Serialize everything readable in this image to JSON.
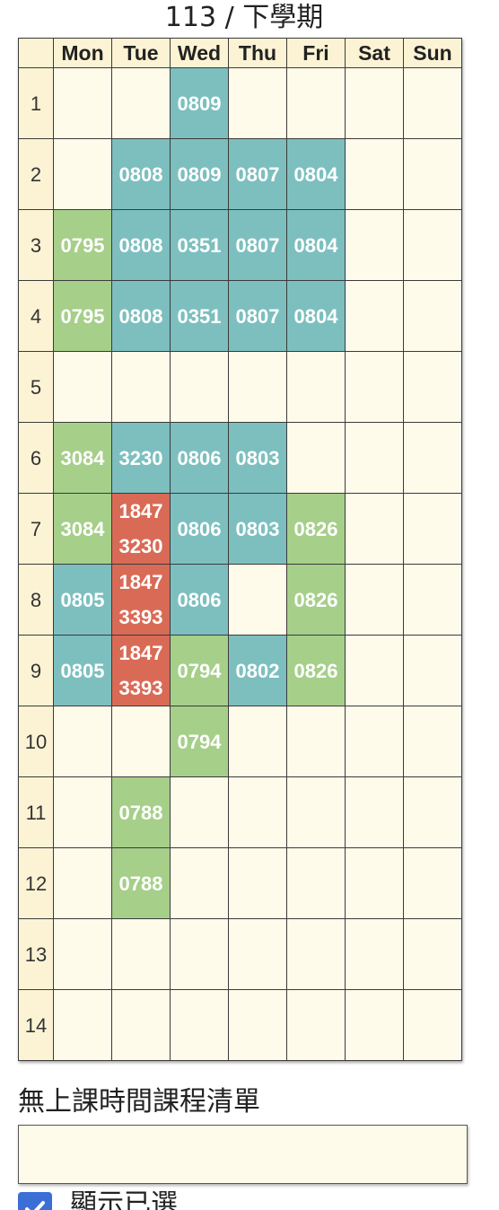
{
  "header": {
    "title": "113 / 下學期"
  },
  "timetable": {
    "days": [
      "Mon",
      "Tue",
      "Wed",
      "Thu",
      "Fri",
      "Sat",
      "Sun"
    ],
    "periods": [
      "1",
      "2",
      "3",
      "4",
      "5",
      "6",
      "7",
      "8",
      "9",
      "10",
      "11",
      "12",
      "13",
      "14"
    ],
    "rows": [
      [
        {
          "codes": [],
          "color": "empty"
        },
        {
          "codes": [],
          "color": "empty"
        },
        {
          "codes": [
            "0809"
          ],
          "color": "blue"
        },
        {
          "codes": [],
          "color": "empty"
        },
        {
          "codes": [],
          "color": "empty"
        },
        {
          "codes": [],
          "color": "empty"
        },
        {
          "codes": [],
          "color": "empty"
        }
      ],
      [
        {
          "codes": [],
          "color": "empty"
        },
        {
          "codes": [
            "0808"
          ],
          "color": "blue"
        },
        {
          "codes": [
            "0809"
          ],
          "color": "blue"
        },
        {
          "codes": [
            "0807"
          ],
          "color": "blue"
        },
        {
          "codes": [
            "0804"
          ],
          "color": "blue"
        },
        {
          "codes": [],
          "color": "empty"
        },
        {
          "codes": [],
          "color": "empty"
        }
      ],
      [
        {
          "codes": [
            "0795"
          ],
          "color": "green"
        },
        {
          "codes": [
            "0808"
          ],
          "color": "blue"
        },
        {
          "codes": [
            "0351"
          ],
          "color": "blue"
        },
        {
          "codes": [
            "0807"
          ],
          "color": "blue"
        },
        {
          "codes": [
            "0804"
          ],
          "color": "blue"
        },
        {
          "codes": [],
          "color": "empty"
        },
        {
          "codes": [],
          "color": "empty"
        }
      ],
      [
        {
          "codes": [
            "0795"
          ],
          "color": "green"
        },
        {
          "codes": [
            "0808"
          ],
          "color": "blue"
        },
        {
          "codes": [
            "0351"
          ],
          "color": "blue"
        },
        {
          "codes": [
            "0807"
          ],
          "color": "blue"
        },
        {
          "codes": [
            "0804"
          ],
          "color": "blue"
        },
        {
          "codes": [],
          "color": "empty"
        },
        {
          "codes": [],
          "color": "empty"
        }
      ],
      [
        {
          "codes": [],
          "color": "empty"
        },
        {
          "codes": [],
          "color": "empty"
        },
        {
          "codes": [],
          "color": "empty"
        },
        {
          "codes": [],
          "color": "empty"
        },
        {
          "codes": [],
          "color": "empty"
        },
        {
          "codes": [],
          "color": "empty"
        },
        {
          "codes": [],
          "color": "empty"
        }
      ],
      [
        {
          "codes": [
            "3084"
          ],
          "color": "green"
        },
        {
          "codes": [
            "3230"
          ],
          "color": "blue"
        },
        {
          "codes": [
            "0806"
          ],
          "color": "blue"
        },
        {
          "codes": [
            "0803"
          ],
          "color": "blue"
        },
        {
          "codes": [],
          "color": "empty"
        },
        {
          "codes": [],
          "color": "empty"
        },
        {
          "codes": [],
          "color": "empty"
        }
      ],
      [
        {
          "codes": [
            "3084"
          ],
          "color": "green"
        },
        {
          "codes": [
            "1847",
            "3230"
          ],
          "color": "red"
        },
        {
          "codes": [
            "0806"
          ],
          "color": "blue"
        },
        {
          "codes": [
            "0803"
          ],
          "color": "blue"
        },
        {
          "codes": [
            "0826"
          ],
          "color": "green"
        },
        {
          "codes": [],
          "color": "empty"
        },
        {
          "codes": [],
          "color": "empty"
        }
      ],
      [
        {
          "codes": [
            "0805"
          ],
          "color": "blue"
        },
        {
          "codes": [
            "1847",
            "3393"
          ],
          "color": "red"
        },
        {
          "codes": [
            "0806"
          ],
          "color": "blue"
        },
        {
          "codes": [],
          "color": "empty"
        },
        {
          "codes": [
            "0826"
          ],
          "color": "green"
        },
        {
          "codes": [],
          "color": "empty"
        },
        {
          "codes": [],
          "color": "empty"
        }
      ],
      [
        {
          "codes": [
            "0805"
          ],
          "color": "blue"
        },
        {
          "codes": [
            "1847",
            "3393"
          ],
          "color": "red"
        },
        {
          "codes": [
            "0794"
          ],
          "color": "green"
        },
        {
          "codes": [
            "0802"
          ],
          "color": "blue"
        },
        {
          "codes": [
            "0826"
          ],
          "color": "green"
        },
        {
          "codes": [],
          "color": "empty"
        },
        {
          "codes": [],
          "color": "empty"
        }
      ],
      [
        {
          "codes": [],
          "color": "empty"
        },
        {
          "codes": [],
          "color": "empty"
        },
        {
          "codes": [
            "0794"
          ],
          "color": "green"
        },
        {
          "codes": [],
          "color": "empty"
        },
        {
          "codes": [],
          "color": "empty"
        },
        {
          "codes": [],
          "color": "empty"
        },
        {
          "codes": [],
          "color": "empty"
        }
      ],
      [
        {
          "codes": [],
          "color": "empty"
        },
        {
          "codes": [
            "0788"
          ],
          "color": "green"
        },
        {
          "codes": [],
          "color": "empty"
        },
        {
          "codes": [],
          "color": "empty"
        },
        {
          "codes": [],
          "color": "empty"
        },
        {
          "codes": [],
          "color": "empty"
        },
        {
          "codes": [],
          "color": "empty"
        }
      ],
      [
        {
          "codes": [],
          "color": "empty"
        },
        {
          "codes": [
            "0788"
          ],
          "color": "green"
        },
        {
          "codes": [],
          "color": "empty"
        },
        {
          "codes": [],
          "color": "empty"
        },
        {
          "codes": [],
          "color": "empty"
        },
        {
          "codes": [],
          "color": "empty"
        },
        {
          "codes": [],
          "color": "empty"
        }
      ],
      [
        {
          "codes": [],
          "color": "empty"
        },
        {
          "codes": [],
          "color": "empty"
        },
        {
          "codes": [],
          "color": "empty"
        },
        {
          "codes": [],
          "color": "empty"
        },
        {
          "codes": [],
          "color": "empty"
        },
        {
          "codes": [],
          "color": "empty"
        },
        {
          "codes": [],
          "color": "empty"
        }
      ],
      [
        {
          "codes": [],
          "color": "empty"
        },
        {
          "codes": [],
          "color": "empty"
        },
        {
          "codes": [],
          "color": "empty"
        },
        {
          "codes": [],
          "color": "empty"
        },
        {
          "codes": [],
          "color": "empty"
        },
        {
          "codes": [],
          "color": "empty"
        },
        {
          "codes": [],
          "color": "empty"
        }
      ]
    ],
    "colors": {
      "blue": "#7dbfbf",
      "green": "#a6cf8a",
      "red": "#d96b56",
      "empty": "#fffbea",
      "header_bg": "#fbf3d4"
    }
  },
  "unscheduled": {
    "label": "無上課時間課程清單",
    "items": []
  },
  "options": {
    "show_selected_label": "顯示已選",
    "show_selected_checked": true,
    "checkbox_color": "#3b6fd6",
    "check_icon": "check-icon"
  }
}
